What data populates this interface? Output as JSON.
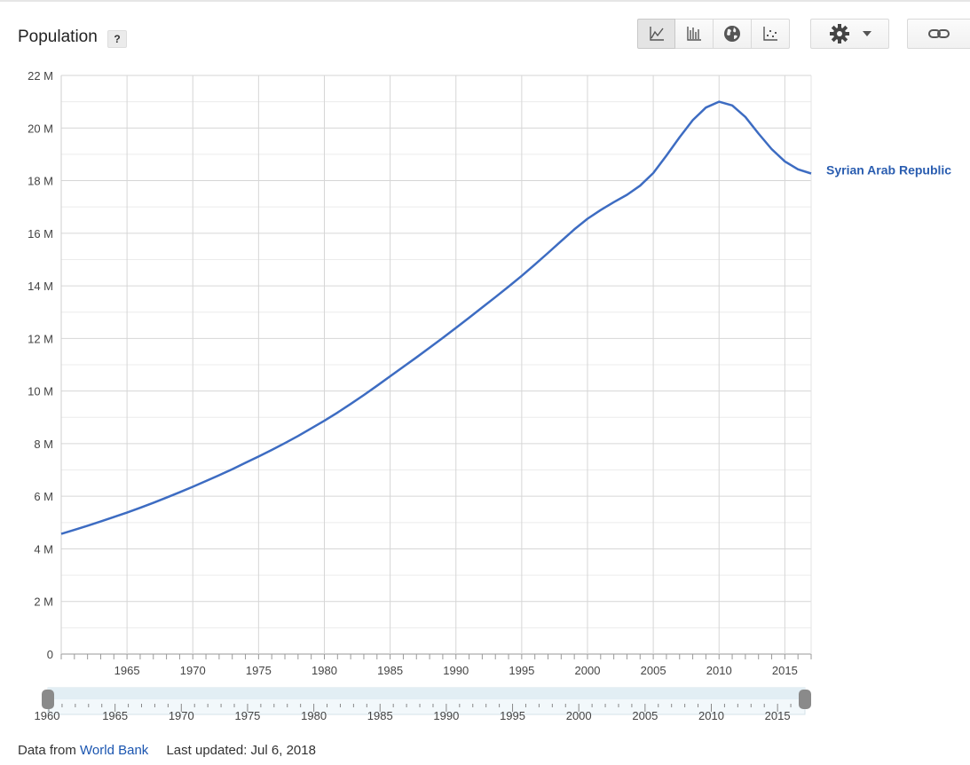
{
  "header": {
    "title": "Population",
    "help_label": "?"
  },
  "toolbar": {
    "chart_types": [
      {
        "icon": "line-chart-icon",
        "active": true
      },
      {
        "icon": "bar-chart-icon",
        "active": false
      },
      {
        "icon": "globe-map-icon",
        "active": false
      },
      {
        "icon": "scatter-chart-icon",
        "active": false
      }
    ],
    "settings_icon": "gear-icon",
    "dropdown_icon": "caret-down-icon",
    "link_icon": "link-icon"
  },
  "colors": {
    "series": "#3d6cc2",
    "label": "#2a5db0",
    "grid": "#d6d6d6"
  },
  "chart_data": {
    "type": "line",
    "title": "Population",
    "xlabel": "",
    "ylabel": "",
    "xlim": [
      1960,
      2017
    ],
    "ylim": [
      0,
      22000000
    ],
    "y_ticks": [
      0,
      2000000,
      4000000,
      6000000,
      8000000,
      10000000,
      12000000,
      14000000,
      16000000,
      18000000,
      20000000,
      22000000
    ],
    "y_tick_labels": [
      "0",
      "2 M",
      "4 M",
      "6 M",
      "8 M",
      "10 M",
      "12 M",
      "14 M",
      "16 M",
      "18 M",
      "20 M",
      "22 M"
    ],
    "x_ticks": [
      1965,
      1970,
      1975,
      1980,
      1985,
      1990,
      1995,
      2000,
      2005,
      2010,
      2015
    ],
    "x_tick_labels": [
      "1965",
      "1970",
      "1975",
      "1980",
      "1985",
      "1990",
      "1995",
      "2000",
      "2005",
      "2010",
      "2015"
    ],
    "grid": true,
    "series": [
      {
        "name": "Syrian Arab Republic",
        "x": [
          1960,
          1961,
          1962,
          1963,
          1964,
          1965,
          1966,
          1967,
          1968,
          1969,
          1970,
          1971,
          1972,
          1973,
          1974,
          1975,
          1976,
          1977,
          1978,
          1979,
          1980,
          1981,
          1982,
          1983,
          1984,
          1985,
          1986,
          1987,
          1988,
          1989,
          1990,
          1991,
          1992,
          1993,
          1994,
          1995,
          1996,
          1997,
          1998,
          1999,
          2000,
          2001,
          2002,
          2003,
          2004,
          2005,
          2006,
          2007,
          2008,
          2009,
          2010,
          2011,
          2012,
          2013,
          2014,
          2015,
          2016,
          2017
        ],
        "values": [
          4570000,
          4720000,
          4880000,
          5040000,
          5210000,
          5380000,
          5560000,
          5750000,
          5950000,
          6150000,
          6360000,
          6580000,
          6800000,
          7030000,
          7270000,
          7510000,
          7760000,
          8020000,
          8290000,
          8580000,
          8870000,
          9180000,
          9510000,
          9850000,
          10200000,
          10560000,
          10920000,
          11280000,
          11650000,
          12020000,
          12400000,
          12790000,
          13180000,
          13570000,
          13970000,
          14380000,
          14810000,
          15250000,
          15700000,
          16150000,
          16550000,
          16880000,
          17180000,
          17460000,
          17810000,
          18290000,
          18950000,
          19650000,
          20300000,
          20780000,
          21000000,
          20860000,
          20420000,
          19790000,
          19200000,
          18730000,
          18430000,
          18270000
        ]
      }
    ],
    "series_label": "Syrian Arab Republic",
    "range_slider": {
      "start_label": "1960",
      "tick_labels": [
        "1965",
        "1970",
        "1975",
        "1980",
        "1985",
        "1990",
        "1995",
        "2000",
        "2005",
        "2010",
        "2015"
      ]
    }
  },
  "footer": {
    "source_prefix": "Data from ",
    "source_link": "World Bank",
    "updated": "Last updated: Jul 6, 2018"
  }
}
